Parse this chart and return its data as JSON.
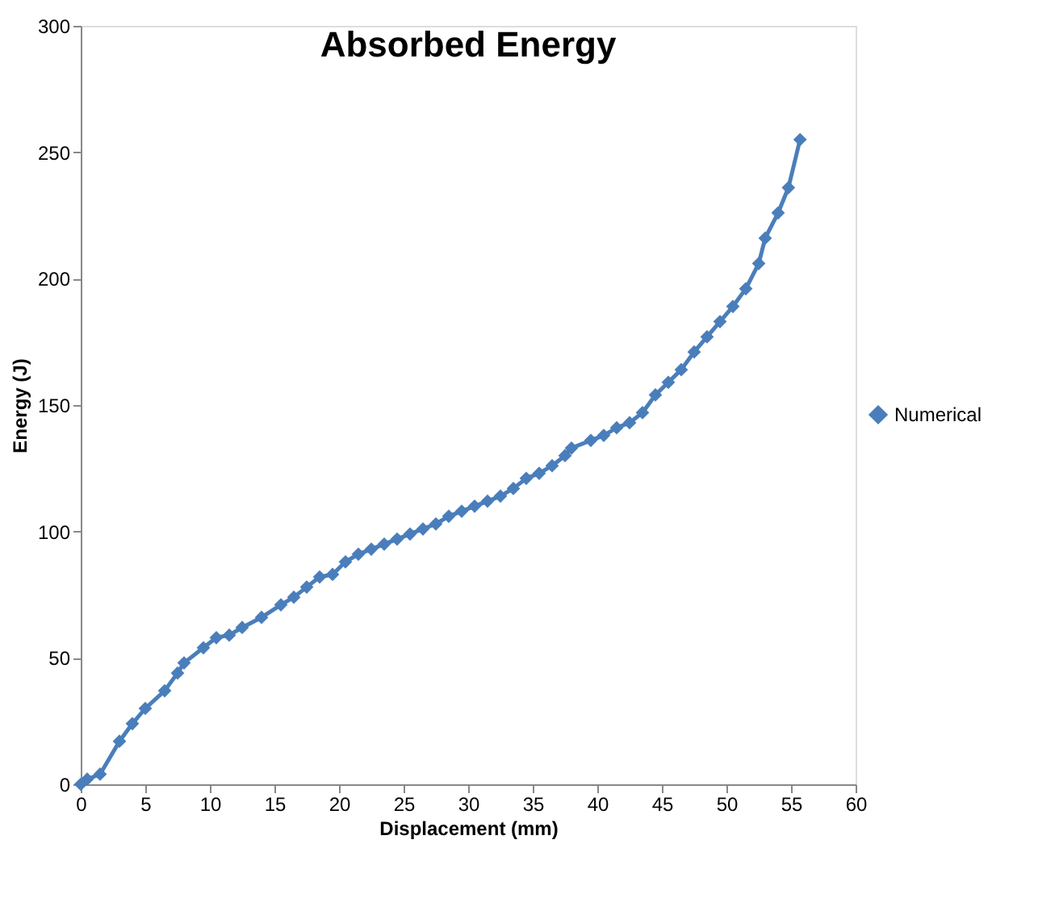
{
  "chart_data": {
    "type": "line",
    "title": "Absorbed Energy",
    "xlabel": "Displacement (mm)",
    "ylabel": "Energy (J)",
    "xlim": [
      0,
      60
    ],
    "xticks": [
      0,
      5,
      10,
      15,
      20,
      25,
      30,
      35,
      40,
      45,
      50,
      55,
      60
    ],
    "ylim": [
      0,
      300
    ],
    "yticks": [
      0,
      50,
      100,
      150,
      200,
      250,
      300
    ],
    "grid": false,
    "legend": "right",
    "marker": "diamond",
    "line_style": "solid",
    "series": [
      {
        "name": "Numerical",
        "color": "#4a7ebb",
        "x": [
          0,
          0.5,
          1.5,
          3,
          4,
          5,
          6.5,
          7.5,
          8,
          9.5,
          10.5,
          11.5,
          12.5,
          14,
          15.5,
          16.5,
          17.5,
          18.5,
          19.5,
          20.5,
          21.5,
          22.5,
          23.5,
          24.5,
          25.5,
          26.5,
          27.5,
          28.5,
          29.5,
          30.5,
          31.5,
          32.5,
          33.5,
          34.5,
          35.5,
          36.5,
          37.5,
          38,
          39.5,
          40.5,
          41.5,
          42.5,
          43.5,
          44.5,
          45.5,
          46.5,
          47.5,
          48.5,
          49.5,
          50.5,
          51.5,
          52.5,
          53,
          54,
          54.8,
          55.7
        ],
        "values": [
          0,
          2,
          4,
          17,
          24,
          30,
          37,
          44,
          48,
          54,
          58,
          59,
          62,
          66,
          71,
          74,
          78,
          82,
          83,
          88,
          91,
          93,
          95,
          97,
          99,
          101,
          103,
          106,
          108,
          110,
          112,
          114,
          117,
          121,
          123,
          126,
          130,
          133,
          136,
          138,
          141,
          143,
          147,
          154,
          159,
          164,
          171,
          177,
          183,
          189,
          196,
          206,
          216,
          226,
          236,
          255
        ]
      }
    ]
  }
}
